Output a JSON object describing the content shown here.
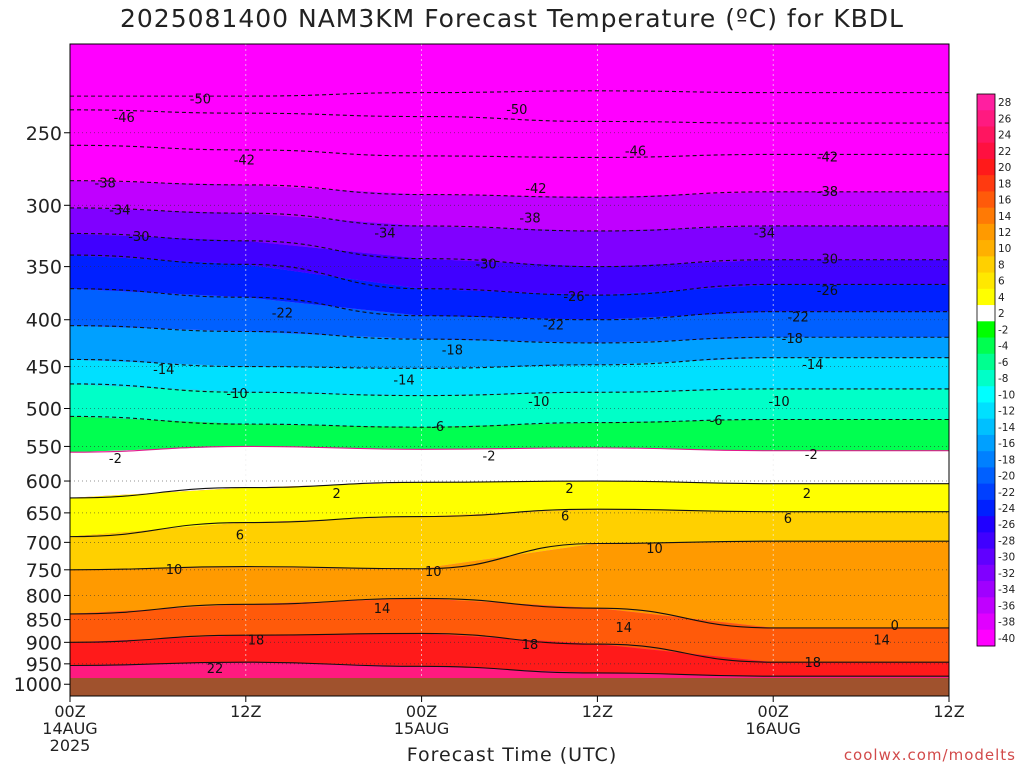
{
  "title": "2025081400 NAM3KM Forecast Temperature (ºC) for KBDL",
  "xlabel": "Forecast Time (UTC)",
  "credit": "coolwx.com/modelts",
  "chart_data": {
    "type": "heatmap",
    "title": "2025081400 NAM3KM Forecast Temperature (ºC) for KBDL",
    "xlabel": "Forecast Time (UTC)",
    "ylabel": "",
    "x_range_hours": [
      0,
      48
    ],
    "y_range_hpa": [
      1030,
      200
    ],
    "y_scale": "log",
    "grid": true,
    "legend": "right",
    "y_ticks": [
      250,
      300,
      350,
      400,
      450,
      500,
      550,
      600,
      650,
      700,
      750,
      800,
      850,
      900,
      950,
      1000
    ],
    "x_ticks": [
      {
        "hour": 0,
        "lines": [
          "00Z",
          "14AUG",
          "2025"
        ]
      },
      {
        "hour": 12,
        "lines": [
          "12Z"
        ]
      },
      {
        "hour": 24,
        "lines": [
          "00Z",
          "15AUG"
        ]
      },
      {
        "hour": 36,
        "lines": [
          "12Z"
        ]
      },
      {
        "hour": 48,
        "lines": [
          "00Z",
          "16AUG"
        ]
      },
      {
        "hour": 60,
        "lines": [
          "12Z"
        ]
      }
    ],
    "colorbar_labels": [
      "28",
      "26",
      "24",
      "22",
      "20",
      "18",
      "16",
      "14",
      "12",
      "10",
      "8",
      "6",
      "4",
      "2",
      "-2",
      "-4",
      "-6",
      "-8",
      "-10",
      "-12",
      "-14",
      "-16",
      "-18",
      "-20",
      "-22",
      "-24",
      "-26",
      "-28",
      "-30",
      "-32",
      "-34",
      "-36",
      "-38",
      "-40"
    ],
    "colorbar_colors": [
      "#ff1fa0",
      "#ff1a80",
      "#ff1560",
      "#ff1040",
      "#ff1a1a",
      "#ff3a10",
      "#ff5a0a",
      "#ff7a05",
      "#ff9a00",
      "#ffb000",
      "#ffd000",
      "#ffe800",
      "#ffff00",
      "#ffffff",
      "#00ff00",
      "#00ff50",
      "#00ff90",
      "#00ffc8",
      "#00ffff",
      "#00e0ff",
      "#00c0ff",
      "#00a0ff",
      "#0080ff",
      "#0060ff",
      "#0040ff",
      "#0020ff",
      "#2000ff",
      "#4000ff",
      "#6000ff",
      "#8000ff",
      "#a000ff",
      "#c000ff",
      "#e000ff",
      "#ff00ff"
    ],
    "isotherms": [
      {
        "temp": -50,
        "pressures": [
          228,
          228,
          226,
          225,
          226
        ]
      },
      {
        "temp": -46,
        "pressures": [
          236,
          238,
          240,
          243,
          244
        ]
      },
      {
        "temp": -42,
        "pressures": [
          258,
          261,
          265,
          266,
          264
        ]
      },
      {
        "temp": -38,
        "pressures": [
          282,
          285,
          292,
          294,
          290
        ]
      },
      {
        "temp": -34,
        "pressures": [
          302,
          306,
          316,
          320,
          316
        ]
      },
      {
        "temp": -30,
        "pressures": [
          322,
          328,
          343,
          350,
          344
        ]
      },
      {
        "temp": -26,
        "pressures": [
          340,
          348,
          370,
          376,
          366
        ]
      },
      {
        "temp": -22,
        "pressures": [
          370,
          378,
          396,
          400,
          392
        ]
      },
      {
        "temp": -18,
        "pressures": [
          406,
          412,
          420,
          424,
          418
        ]
      },
      {
        "temp": -14,
        "pressures": [
          442,
          450,
          452,
          448,
          440
        ]
      },
      {
        "temp": -10,
        "pressures": [
          470,
          480,
          484,
          480,
          476
        ]
      },
      {
        "temp": -6,
        "pressures": [
          510,
          520,
          524,
          518,
          514
        ]
      },
      {
        "temp": -2,
        "pressures": [
          558,
          550,
          554,
          552,
          556
        ]
      },
      {
        "temp": 2,
        "pressures": [
          626,
          610,
          602,
          600,
          604
        ]
      },
      {
        "temp": 6,
        "pressures": [
          690,
          666,
          656,
          644,
          648
        ]
      },
      {
        "temp": 10,
        "pressures": [
          750,
          744,
          748,
          702,
          698
        ]
      },
      {
        "temp": 14,
        "pressures": [
          838,
          818,
          806,
          826,
          868
        ]
      },
      {
        "temp": 18,
        "pressures": [
          900,
          884,
          880,
          904,
          946
        ]
      },
      {
        "temp": 22,
        "pressures": [
          954,
          946,
          956,
          972,
          980
        ]
      }
    ],
    "contour_labels": [
      {
        "text": "-50",
        "hour": 8.9,
        "p": 230
      },
      {
        "text": "-50",
        "hour": 30.5,
        "p": 236
      },
      {
        "text": "-46",
        "hour": 3.7,
        "p": 241
      },
      {
        "text": "-46",
        "hour": 38.6,
        "p": 262
      },
      {
        "text": "-42",
        "hour": 11.9,
        "p": 268
      },
      {
        "text": "-42",
        "hour": 31.8,
        "p": 288
      },
      {
        "text": "-42",
        "hour": 51.7,
        "p": 266
      },
      {
        "text": "-38",
        "hour": 2.4,
        "p": 284
      },
      {
        "text": "-38",
        "hour": 31.4,
        "p": 310
      },
      {
        "text": "-38",
        "hour": 51.7,
        "p": 290
      },
      {
        "text": "-34",
        "hour": 3.4,
        "p": 304
      },
      {
        "text": "-34",
        "hour": 21.5,
        "p": 322
      },
      {
        "text": "-34",
        "hour": 47.4,
        "p": 322
      },
      {
        "text": "-30",
        "hour": 4.7,
        "p": 325
      },
      {
        "text": "-30",
        "hour": 28.4,
        "p": 348
      },
      {
        "text": "-30",
        "hour": 51.7,
        "p": 344
      },
      {
        "text": "-26",
        "hour": 34.4,
        "p": 378
      },
      {
        "text": "-26",
        "hour": 51.7,
        "p": 372
      },
      {
        "text": "-22",
        "hour": 14.5,
        "p": 394
      },
      {
        "text": "-22",
        "hour": 33.0,
        "p": 406
      },
      {
        "text": "-22",
        "hour": 49.7,
        "p": 398
      },
      {
        "text": "-18",
        "hour": 26.1,
        "p": 432
      },
      {
        "text": "-18",
        "hour": 49.3,
        "p": 420
      },
      {
        "text": "-14",
        "hour": 6.4,
        "p": 454
      },
      {
        "text": "-14",
        "hour": 22.8,
        "p": 466
      },
      {
        "text": "-14",
        "hour": 50.7,
        "p": 448
      },
      {
        "text": "-10",
        "hour": 11.4,
        "p": 482
      },
      {
        "text": "-10",
        "hour": 32.0,
        "p": 492
      },
      {
        "text": "-10",
        "hour": 48.4,
        "p": 492
      },
      {
        "text": "-6",
        "hour": 25.1,
        "p": 524
      },
      {
        "text": "-6",
        "hour": 44.1,
        "p": 516
      },
      {
        "text": "-2",
        "hour": 3.1,
        "p": 568
      },
      {
        "text": "-2",
        "hour": 28.6,
        "p": 564
      },
      {
        "text": "-2",
        "hour": 50.6,
        "p": 562
      },
      {
        "text": "2",
        "hour": 18.2,
        "p": 620
      },
      {
        "text": "2",
        "hour": 34.1,
        "p": 612
      },
      {
        "text": "2",
        "hour": 50.3,
        "p": 620
      },
      {
        "text": "6",
        "hour": 11.6,
        "p": 688
      },
      {
        "text": "6",
        "hour": 33.8,
        "p": 656
      },
      {
        "text": "6",
        "hour": 49.0,
        "p": 660
      },
      {
        "text": "10",
        "hour": 7.1,
        "p": 750
      },
      {
        "text": "10",
        "hour": 24.8,
        "p": 754
      },
      {
        "text": "10",
        "hour": 39.9,
        "p": 712
      },
      {
        "text": "14",
        "hour": 21.3,
        "p": 828
      },
      {
        "text": "14",
        "hour": 37.8,
        "p": 868
      },
      {
        "text": "14",
        "hour": 55.4,
        "p": 896
      },
      {
        "text": "18",
        "hour": 12.7,
        "p": 896
      },
      {
        "text": "18",
        "hour": 31.4,
        "p": 906
      },
      {
        "text": "18",
        "hour": 50.7,
        "p": 948
      },
      {
        "text": "22",
        "hour": 9.9,
        "p": 962
      },
      {
        "text": "0",
        "hour": 56.3,
        "p": 864
      }
    ]
  }
}
